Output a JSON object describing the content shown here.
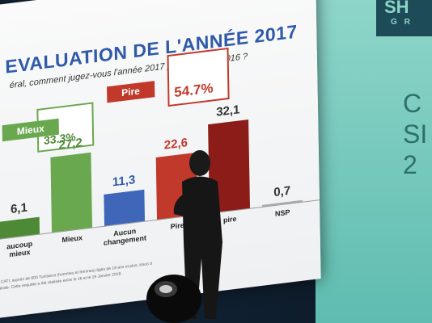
{
  "slide": {
    "title": "EVALUATION DE L'ANNÉE 2017",
    "subtitle": "éral, comment jugez-vous l'année 2017 par rapport à 2016 ?",
    "legend_mieux": "Mieux",
    "legend_pire": "Pire",
    "total_mieux": "33.3%",
    "total_pire": "54.7%",
    "footnote_line1": "de CATI, auprès de 800 Tunisiens (hommes et femmes) âgés de 18 ans et plus, issus d",
    "footnote_line2": "énérale. Cette enquête a été réalisée entre le 16 et le 19 Janvier 2018."
  },
  "chart_data": {
    "type": "bar",
    "categories": [
      "aucoup\nmieux",
      "Mieux",
      "Aucun\nchangement",
      "Pire",
      "pire",
      "NSP"
    ],
    "values": [
      6.1,
      27.2,
      11.3,
      22.6,
      32.1,
      0.7
    ],
    "value_labels": [
      "6,1",
      "27,2",
      "11,3",
      "22,6",
      "32,1",
      "0,7"
    ],
    "colors": [
      "#4e8a36",
      "#6aa84f",
      "#3f66b8",
      "#c0392b",
      "#8b1c17",
      "#aaaaaa"
    ],
    "label_colors": [
      "#333333",
      "#4e8a36",
      "#2e5aa8",
      "#c0392b",
      "#333333",
      "#333333"
    ],
    "ylim": [
      0,
      35
    ]
  },
  "right_panel": {
    "badge_top": "SH",
    "badge_bottom": "GR",
    "line1": "C",
    "line2": "SI",
    "line3": "2"
  }
}
